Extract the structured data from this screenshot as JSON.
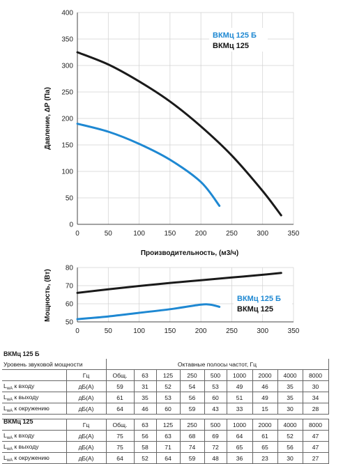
{
  "chart_data": [
    {
      "type": "line",
      "ylabel": "Давление, ΔР (Па)",
      "xlabel": "Производительность, (м³/ч)",
      "xlim": [
        0,
        350
      ],
      "ylim": [
        0,
        400
      ],
      "xticks": [
        "0",
        "50",
        "100",
        "150",
        "200",
        "250",
        "300",
        "350"
      ],
      "yticks": [
        "0",
        "50",
        "100",
        "150",
        "200",
        "250",
        "300",
        "350",
        "400"
      ],
      "grid": true,
      "legend_position": "top-right",
      "series": [
        {
          "name": "ВКМц 125 Б",
          "color": "#1e88d2",
          "x": [
            0,
            50,
            100,
            150,
            200,
            230
          ],
          "y": [
            190,
            175,
            152,
            122,
            80,
            35
          ]
        },
        {
          "name": "ВКМц 125",
          "color": "#1a1a1a",
          "x": [
            0,
            50,
            100,
            150,
            200,
            250,
            300,
            330
          ],
          "y": [
            325,
            302,
            270,
            232,
            185,
            130,
            63,
            17
          ]
        }
      ]
    },
    {
      "type": "line",
      "ylabel": "Мощность, (Вт)",
      "xlim": [
        0,
        350
      ],
      "ylim": [
        50,
        80
      ],
      "xticks": [
        "0",
        "50",
        "100",
        "150",
        "200",
        "250",
        "300",
        "350"
      ],
      "yticks": [
        "50",
        "60",
        "70",
        "80"
      ],
      "grid": true,
      "legend_position": "right",
      "series": [
        {
          "name": "ВКМц 125 Б",
          "color": "#1e88d2",
          "x": [
            0,
            50,
            100,
            150,
            200,
            215,
            230
          ],
          "y": [
            51.5,
            53,
            55,
            57,
            59.5,
            59.5,
            58.3
          ]
        },
        {
          "name": "ВКМц 125",
          "color": "#1a1a1a",
          "x": [
            0,
            50,
            100,
            150,
            200,
            250,
            300,
            330
          ],
          "y": [
            66,
            68,
            69.8,
            71.5,
            73,
            74.5,
            76,
            77
          ]
        }
      ]
    }
  ],
  "tables": [
    {
      "title": "ВКМц 125 Б",
      "header_left": "Уровень звуковой мощности",
      "header_right": "Октавные полосы частот, Гц",
      "columns": [],
      "rows": [
        {
          "label": "к входу",
          "unit": "дБ(А)",
          "values": [
            "59",
            "31",
            "52",
            "54",
            "53",
            "49",
            "46",
            "35",
            "30"
          ]
        },
        {
          "label": "к выходу",
          "unit": "дБ(А)",
          "values": [
            "61",
            "35",
            "53",
            "56",
            "60",
            "51",
            "49",
            "35",
            "34"
          ]
        },
        {
          "label": "к окружению",
          "unit": "дБ(А)",
          "values": [
            "64",
            "46",
            "60",
            "59",
            "43",
            "33",
            "15",
            "30",
            "28"
          ]
        }
      ]
    },
    {
      "title": "ВКМц 125",
      "header_left": "",
      "header_right": "",
      "hz_label": "Гц",
      "columns": [
        "Общ.",
        "63",
        "125",
        "250",
        "500",
        "1000",
        "2000",
        "4000",
        "8000"
      ],
      "rows": [
        {
          "label": "к входу",
          "unit": "дБ(А)",
          "values": [
            "75",
            "56",
            "63",
            "68",
            "69",
            "64",
            "61",
            "52",
            "47"
          ]
        },
        {
          "label": "к выходу",
          "unit": "дБ(А)",
          "values": [
            "75",
            "58",
            "71",
            "74",
            "72",
            "65",
            "65",
            "56",
            "47"
          ]
        },
        {
          "label": "к окружению",
          "unit": "дБ(А)",
          "values": [
            "64",
            "52",
            "64",
            "59",
            "48",
            "36",
            "23",
            "30",
            "27"
          ]
        }
      ]
    }
  ],
  "table1_columns": {
    "hz_label": "Гц",
    "cols": [
      "Общ.",
      "63",
      "125",
      "250",
      "500",
      "1000",
      "2000",
      "4000",
      "8000"
    ]
  },
  "lwa_prefix": "L",
  "lwa_sub": "wA"
}
